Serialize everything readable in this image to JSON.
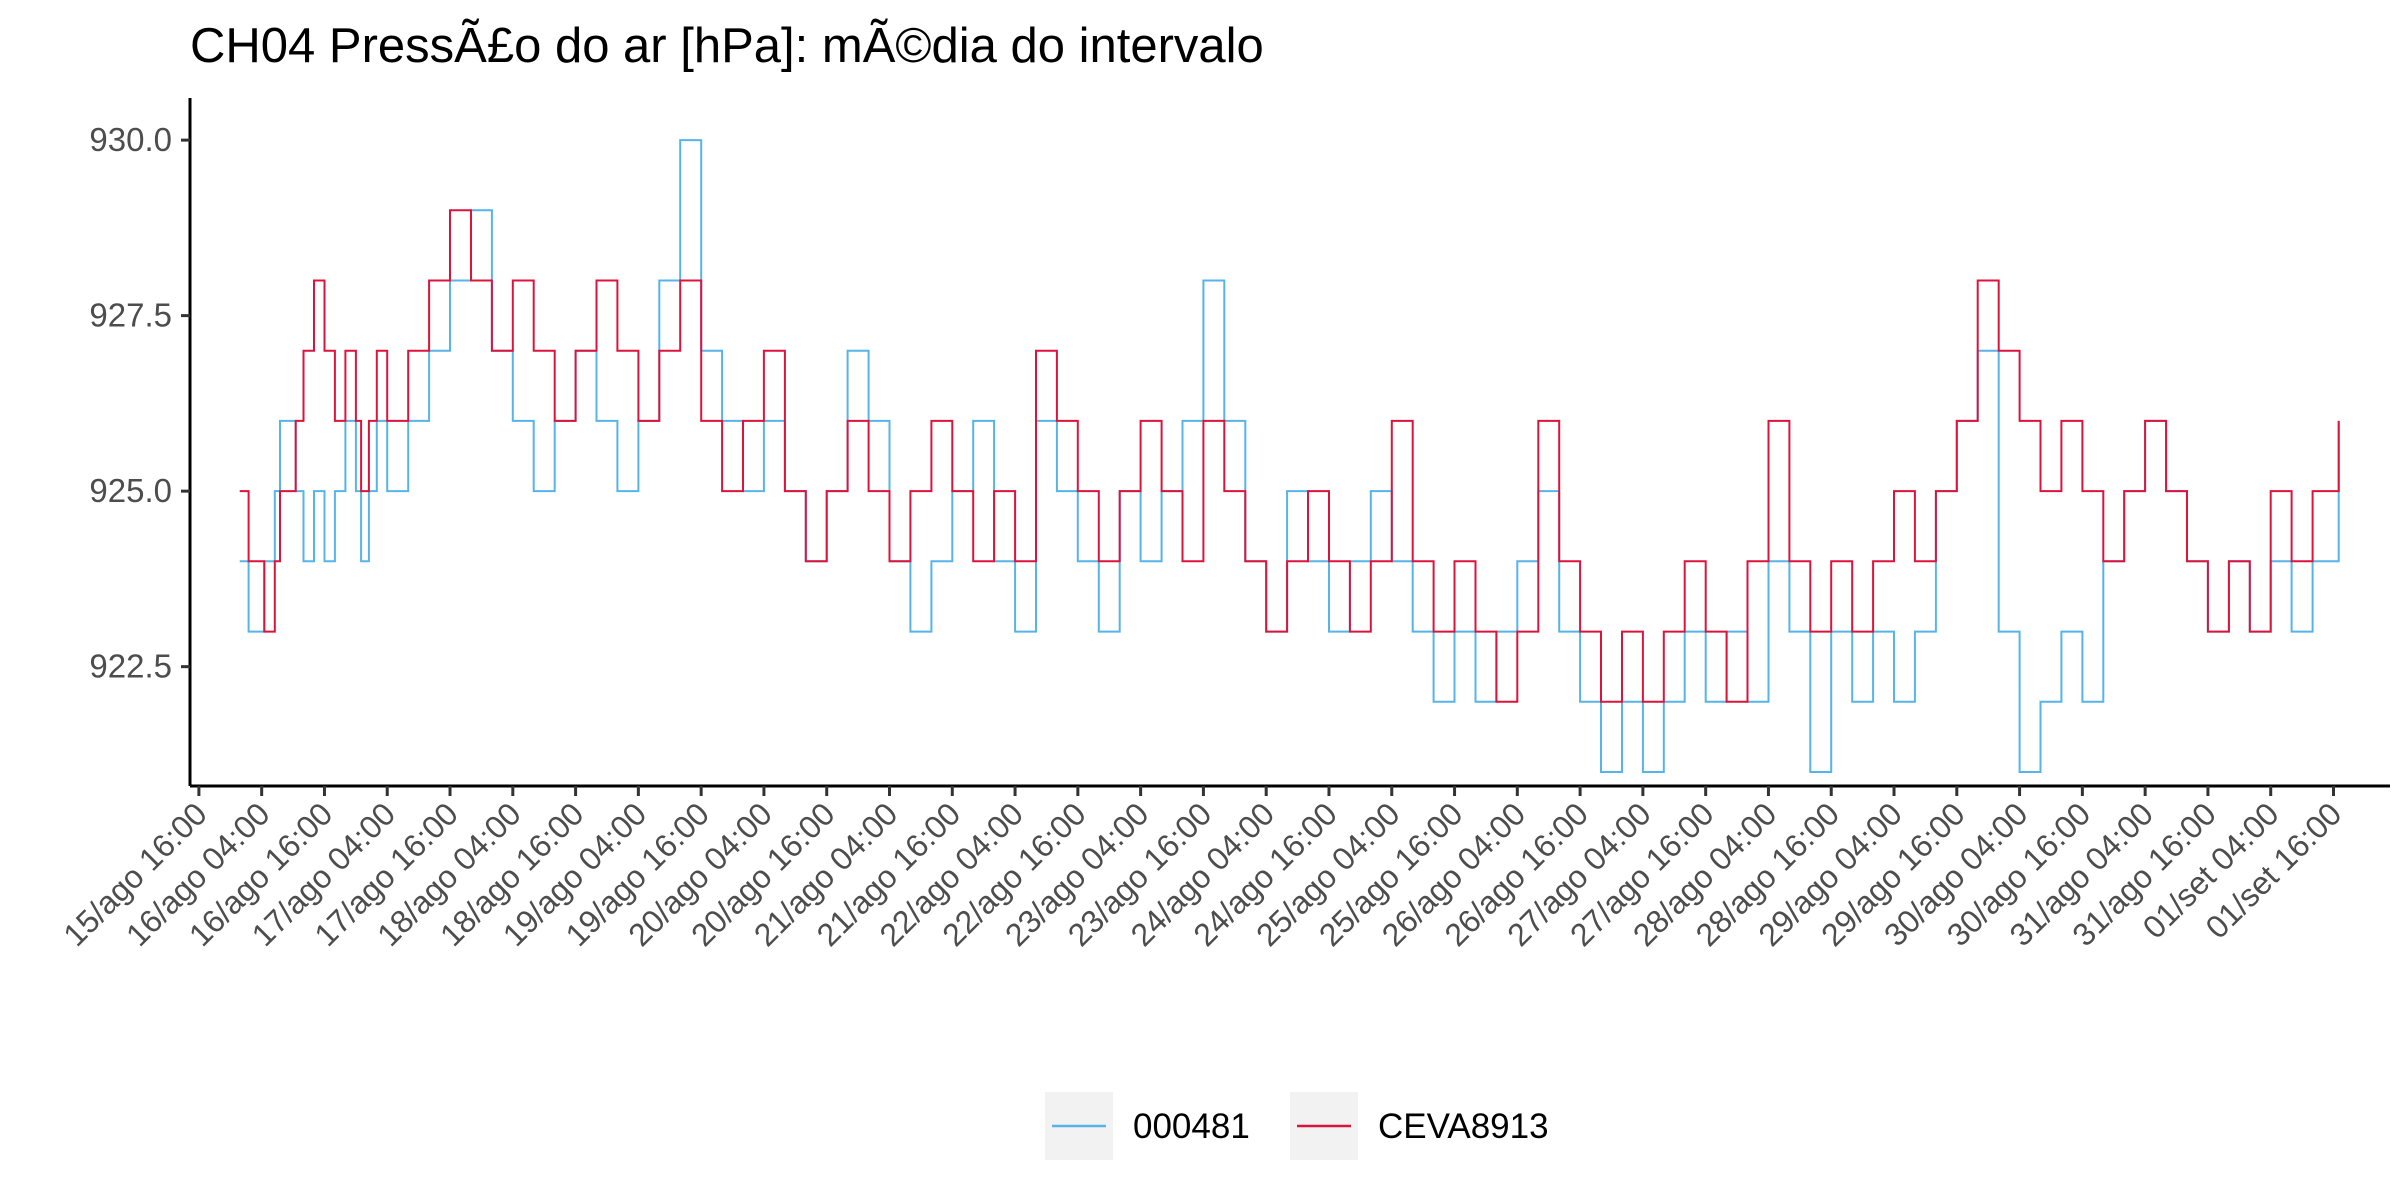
{
  "chart_data": {
    "type": "line",
    "title": "CH04 PressÃ£o do ar [hPa]: mÃ©dia do intervalo",
    "xlabel": "",
    "ylabel": "",
    "grid": false,
    "legend_position": "bottom",
    "ylim": [
      920.8,
      930.6
    ],
    "y_ticks": [
      "922.5",
      "925.0",
      "927.5",
      "930.0"
    ],
    "x_ticks": [
      "15/ago 16:00",
      "16/ago 04:00",
      "16/ago 16:00",
      "17/ago 04:00",
      "17/ago 16:00",
      "18/ago 04:00",
      "18/ago 16:00",
      "19/ago 04:00",
      "19/ago 16:00",
      "20/ago 04:00",
      "20/ago 16:00",
      "21/ago 04:00",
      "21/ago 16:00",
      "22/ago 04:00",
      "22/ago 16:00",
      "23/ago 04:00",
      "23/ago 16:00",
      "24/ago 04:00",
      "24/ago 16:00",
      "25/ago 04:00",
      "25/ago 16:00",
      "26/ago 04:00",
      "26/ago 16:00",
      "27/ago 04:00",
      "27/ago 16:00",
      "28/ago 04:00",
      "28/ago 16:00",
      "29/ago 04:00",
      "29/ago 16:00",
      "30/ago 04:00",
      "30/ago 16:00",
      "31/ago 04:00",
      "31/ago 16:00",
      "01/set 04:00",
      "01/set 16:00"
    ],
    "x_range_hours": [
      -1.7,
      418.8
    ],
    "series": [
      {
        "name": "000481",
        "color": "#56B4E9",
        "x": [
          7.8,
          9.5,
          12.5,
          14.5,
          15.5,
          18.5,
          20,
          22,
          24,
          26,
          28,
          30,
          31,
          32.5,
          34,
          36,
          40,
          44,
          48,
          52,
          56,
          60,
          64,
          68,
          72,
          76,
          80,
          84,
          88,
          92,
          96,
          100,
          104,
          108,
          112,
          116,
          120,
          124,
          128,
          132,
          136,
          140,
          144,
          148,
          152,
          156,
          160,
          164,
          168,
          172,
          176,
          180,
          184,
          188,
          192,
          196,
          200,
          204,
          208,
          212,
          216,
          220,
          224,
          228,
          232,
          236,
          240,
          244,
          248,
          252,
          256,
          260,
          264,
          268,
          272,
          276,
          280,
          284,
          288,
          292,
          296,
          300,
          304,
          308,
          312,
          316,
          320,
          324,
          328,
          332,
          336,
          340,
          344,
          348,
          352,
          356,
          360,
          364,
          368,
          372,
          376,
          380,
          384,
          388,
          392,
          396,
          400,
          404,
          409
        ],
        "values": [
          924,
          923,
          924,
          925,
          926,
          925,
          924,
          925,
          924,
          925,
          926,
          925,
          924,
          925,
          926,
          925,
          926,
          927,
          928,
          929,
          927,
          926,
          925,
          926,
          927,
          926,
          925,
          926,
          928,
          930,
          927,
          926,
          925,
          926,
          925,
          924,
          925,
          927,
          926,
          924,
          923,
          924,
          925,
          926,
          924,
          923,
          926,
          925,
          924,
          923,
          925,
          924,
          925,
          926,
          928,
          926,
          924,
          923,
          925,
          924,
          923,
          924,
          925,
          924,
          923,
          922,
          923,
          922,
          923,
          924,
          925,
          923,
          922,
          921,
          922,
          921,
          922,
          923,
          922,
          923,
          922,
          924,
          923,
          921,
          923,
          922,
          923,
          922,
          923,
          925,
          926,
          927,
          923,
          921,
          922,
          923,
          922,
          924,
          925,
          926,
          925,
          924,
          923,
          924,
          923,
          924,
          923,
          924,
          926
        ]
      },
      {
        "name": "CEVA8913",
        "color": "#DC143C",
        "x": [
          7.8,
          9.5,
          12.5,
          14.5,
          15.5,
          18.5,
          20,
          22,
          24,
          26,
          28,
          30,
          31,
          32.5,
          34,
          36,
          40,
          44,
          48,
          52,
          56,
          60,
          64,
          68,
          72,
          76,
          80,
          84,
          88,
          92,
          96,
          100,
          104,
          108,
          112,
          116,
          120,
          124,
          128,
          132,
          136,
          140,
          144,
          148,
          152,
          156,
          160,
          164,
          168,
          172,
          176,
          180,
          184,
          188,
          192,
          196,
          200,
          204,
          208,
          212,
          216,
          220,
          224,
          228,
          232,
          236,
          240,
          244,
          248,
          252,
          256,
          260,
          264,
          268,
          272,
          276,
          280,
          284,
          288,
          292,
          296,
          300,
          304,
          308,
          312,
          316,
          320,
          324,
          328,
          332,
          336,
          340,
          344,
          348,
          352,
          356,
          360,
          364,
          368,
          372,
          376,
          380,
          384,
          388,
          392,
          396,
          400,
          404,
          409
        ],
        "values": [
          925,
          924,
          923,
          924,
          925,
          926,
          927,
          928,
          927,
          926,
          927,
          926,
          925,
          926,
          927,
          926,
          927,
          928,
          929,
          928,
          927,
          928,
          927,
          926,
          927,
          928,
          927,
          926,
          927,
          928,
          926,
          925,
          926,
          927,
          925,
          924,
          925,
          926,
          925,
          924,
          925,
          926,
          925,
          924,
          925,
          924,
          927,
          926,
          925,
          924,
          925,
          926,
          925,
          924,
          926,
          925,
          924,
          923,
          924,
          925,
          924,
          923,
          924,
          926,
          924,
          923,
          924,
          923,
          922,
          923,
          926,
          924,
          923,
          922,
          923,
          922,
          923,
          924,
          923,
          922,
          924,
          926,
          924,
          923,
          924,
          923,
          924,
          925,
          924,
          925,
          926,
          928,
          927,
          926,
          925,
          926,
          925,
          924,
          925,
          926,
          925,
          924,
          923,
          924,
          923,
          925,
          924,
          925,
          926
        ]
      }
    ]
  }
}
